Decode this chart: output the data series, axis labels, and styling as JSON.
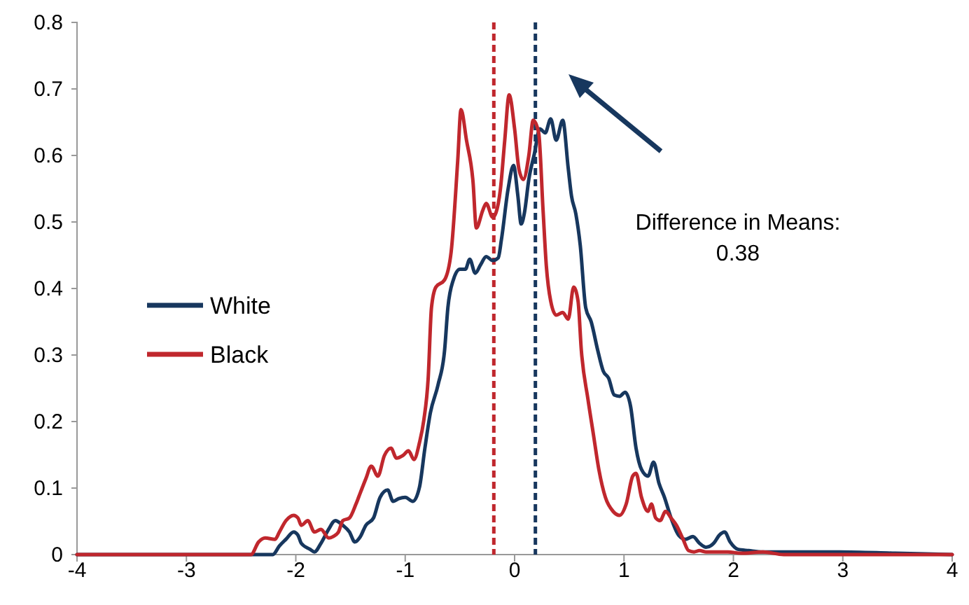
{
  "chart_data": {
    "type": "line",
    "xlim": [
      -4,
      4
    ],
    "xticks": [
      -4,
      -3,
      -2,
      -1,
      0,
      1,
      2,
      3,
      4
    ],
    "ylim": [
      0,
      0.8
    ],
    "yticks": [
      0,
      0.1,
      0.2,
      0.3,
      0.4,
      0.5,
      0.6,
      0.7,
      0.8
    ],
    "grid": false,
    "legend": "left",
    "marker": "none",
    "line_style": "solid",
    "series": [
      {
        "name": "White",
        "color": "#17375e",
        "x": [
          -4,
          -2.21,
          -2.15,
          -2.09,
          -2.02,
          -1.98,
          -1.95,
          -1.87,
          -1.83,
          -1.77,
          -1.7,
          -1.64,
          -1.57,
          -1.51,
          -1.46,
          -1.41,
          -1.36,
          -1.29,
          -1.23,
          -1.16,
          -1.11,
          -1.06,
          -1,
          -0.93,
          -0.87,
          -0.82,
          -0.77,
          -0.7,
          -0.64,
          -0.61,
          -0.56,
          -0.5,
          -0.45,
          -0.41,
          -0.36,
          -0.31,
          -0.26,
          -0.2,
          -0.15,
          -0.12,
          -0.06,
          -0.01,
          0.03,
          0.06,
          0.09,
          0.13,
          0.18,
          0.23,
          0.28,
          0.33,
          0.38,
          0.44,
          0.49,
          0.52,
          0.56,
          0.6,
          0.65,
          0.7,
          0.76,
          0.81,
          0.86,
          0.91,
          0.96,
          1.01,
          1.06,
          1.11,
          1.16,
          1.22,
          1.27,
          1.32,
          1.37,
          1.43,
          1.5,
          1.56,
          1.63,
          1.69,
          1.75,
          1.82,
          1.87,
          1.92,
          1.97,
          2.04,
          2.14,
          2.27,
          2.46,
          2.97,
          3.48,
          4
        ],
        "values": [
          0,
          0,
          0.013,
          0.023,
          0.034,
          0.029,
          0.017,
          0.008,
          0.004,
          0.017,
          0.038,
          0.051,
          0.044,
          0.034,
          0.019,
          0.027,
          0.044,
          0.055,
          0.086,
          0.097,
          0.08,
          0.084,
          0.086,
          0.08,
          0.101,
          0.16,
          0.213,
          0.255,
          0.307,
          0.371,
          0.413,
          0.429,
          0.429,
          0.444,
          0.423,
          0.436,
          0.448,
          0.442,
          0.446,
          0.474,
          0.549,
          0.585,
          0.539,
          0.497,
          0.514,
          0.564,
          0.602,
          0.64,
          0.634,
          0.655,
          0.623,
          0.653,
          0.581,
          0.539,
          0.512,
          0.465,
          0.371,
          0.35,
          0.307,
          0.276,
          0.265,
          0.24,
          0.238,
          0.244,
          0.223,
          0.16,
          0.128,
          0.118,
          0.139,
          0.107,
          0.086,
          0.055,
          0.029,
          0.023,
          0.027,
          0.017,
          0.011,
          0.017,
          0.029,
          0.034,
          0.019,
          0.008,
          0.006,
          0.004,
          0.004,
          0.004,
          0.002,
          0
        ]
      },
      {
        "name": "Black",
        "color": "#c0272d",
        "x": [
          -4,
          -2.41,
          -2.34,
          -2.28,
          -2.19,
          -2.15,
          -2.09,
          -2.02,
          -1.98,
          -1.95,
          -1.89,
          -1.83,
          -1.77,
          -1.7,
          -1.66,
          -1.61,
          -1.57,
          -1.51,
          -1.45,
          -1.41,
          -1.36,
          -1.31,
          -1.25,
          -1.19,
          -1.13,
          -1.08,
          -1.02,
          -0.97,
          -0.92,
          -0.87,
          -0.83,
          -0.79,
          -0.76,
          -0.72,
          -0.64,
          -0.58,
          -0.52,
          -0.49,
          -0.44,
          -0.38,
          -0.35,
          -0.29,
          -0.26,
          -0.2,
          -0.17,
          -0.13,
          -0.09,
          -0.05,
          0,
          0.04,
          0.08,
          0.13,
          0.17,
          0.22,
          0.26,
          0.29,
          0.33,
          0.38,
          0.44,
          0.49,
          0.54,
          0.58,
          0.61,
          0.67,
          0.72,
          0.77,
          0.83,
          0.9,
          0.96,
          1.02,
          1.08,
          1.11,
          1.16,
          1.22,
          1.25,
          1.29,
          1.33,
          1.38,
          1.43,
          1.48,
          1.54,
          1.59,
          1.64,
          1.69,
          1.75,
          1.95,
          2.07,
          2.27,
          2.46,
          4
        ],
        "values": [
          0,
          0,
          0.019,
          0.025,
          0.023,
          0.034,
          0.051,
          0.059,
          0.055,
          0.044,
          0.051,
          0.034,
          0.038,
          0.025,
          0.027,
          0.034,
          0.051,
          0.055,
          0.076,
          0.093,
          0.114,
          0.133,
          0.118,
          0.149,
          0.16,
          0.145,
          0.149,
          0.156,
          0.143,
          0.168,
          0.202,
          0.265,
          0.371,
          0.402,
          0.413,
          0.455,
          0.592,
          0.669,
          0.623,
          0.56,
          0.491,
          0.518,
          0.528,
          0.507,
          0.514,
          0.549,
          0.623,
          0.691,
          0.64,
          0.579,
          0.564,
          0.6,
          0.653,
          0.634,
          0.518,
          0.434,
          0.381,
          0.36,
          0.364,
          0.354,
          0.402,
          0.381,
          0.307,
          0.234,
          0.181,
          0.128,
          0.086,
          0.065,
          0.059,
          0.076,
          0.118,
          0.122,
          0.086,
          0.065,
          0.076,
          0.055,
          0.051,
          0.065,
          0.055,
          0.044,
          0.023,
          0.006,
          0.004,
          0.006,
          0.004,
          0.004,
          0.002,
          0.004,
          0,
          0
        ]
      }
    ],
    "ref_lines": [
      {
        "axis": "x",
        "value": -0.19,
        "color": "#c0272d",
        "line_style": "dashed"
      },
      {
        "axis": "x",
        "value": 0.19,
        "color": "#17375e",
        "line_style": "dashed"
      }
    ],
    "annotations": [
      "Difference in Means:\n0.38"
    ]
  }
}
